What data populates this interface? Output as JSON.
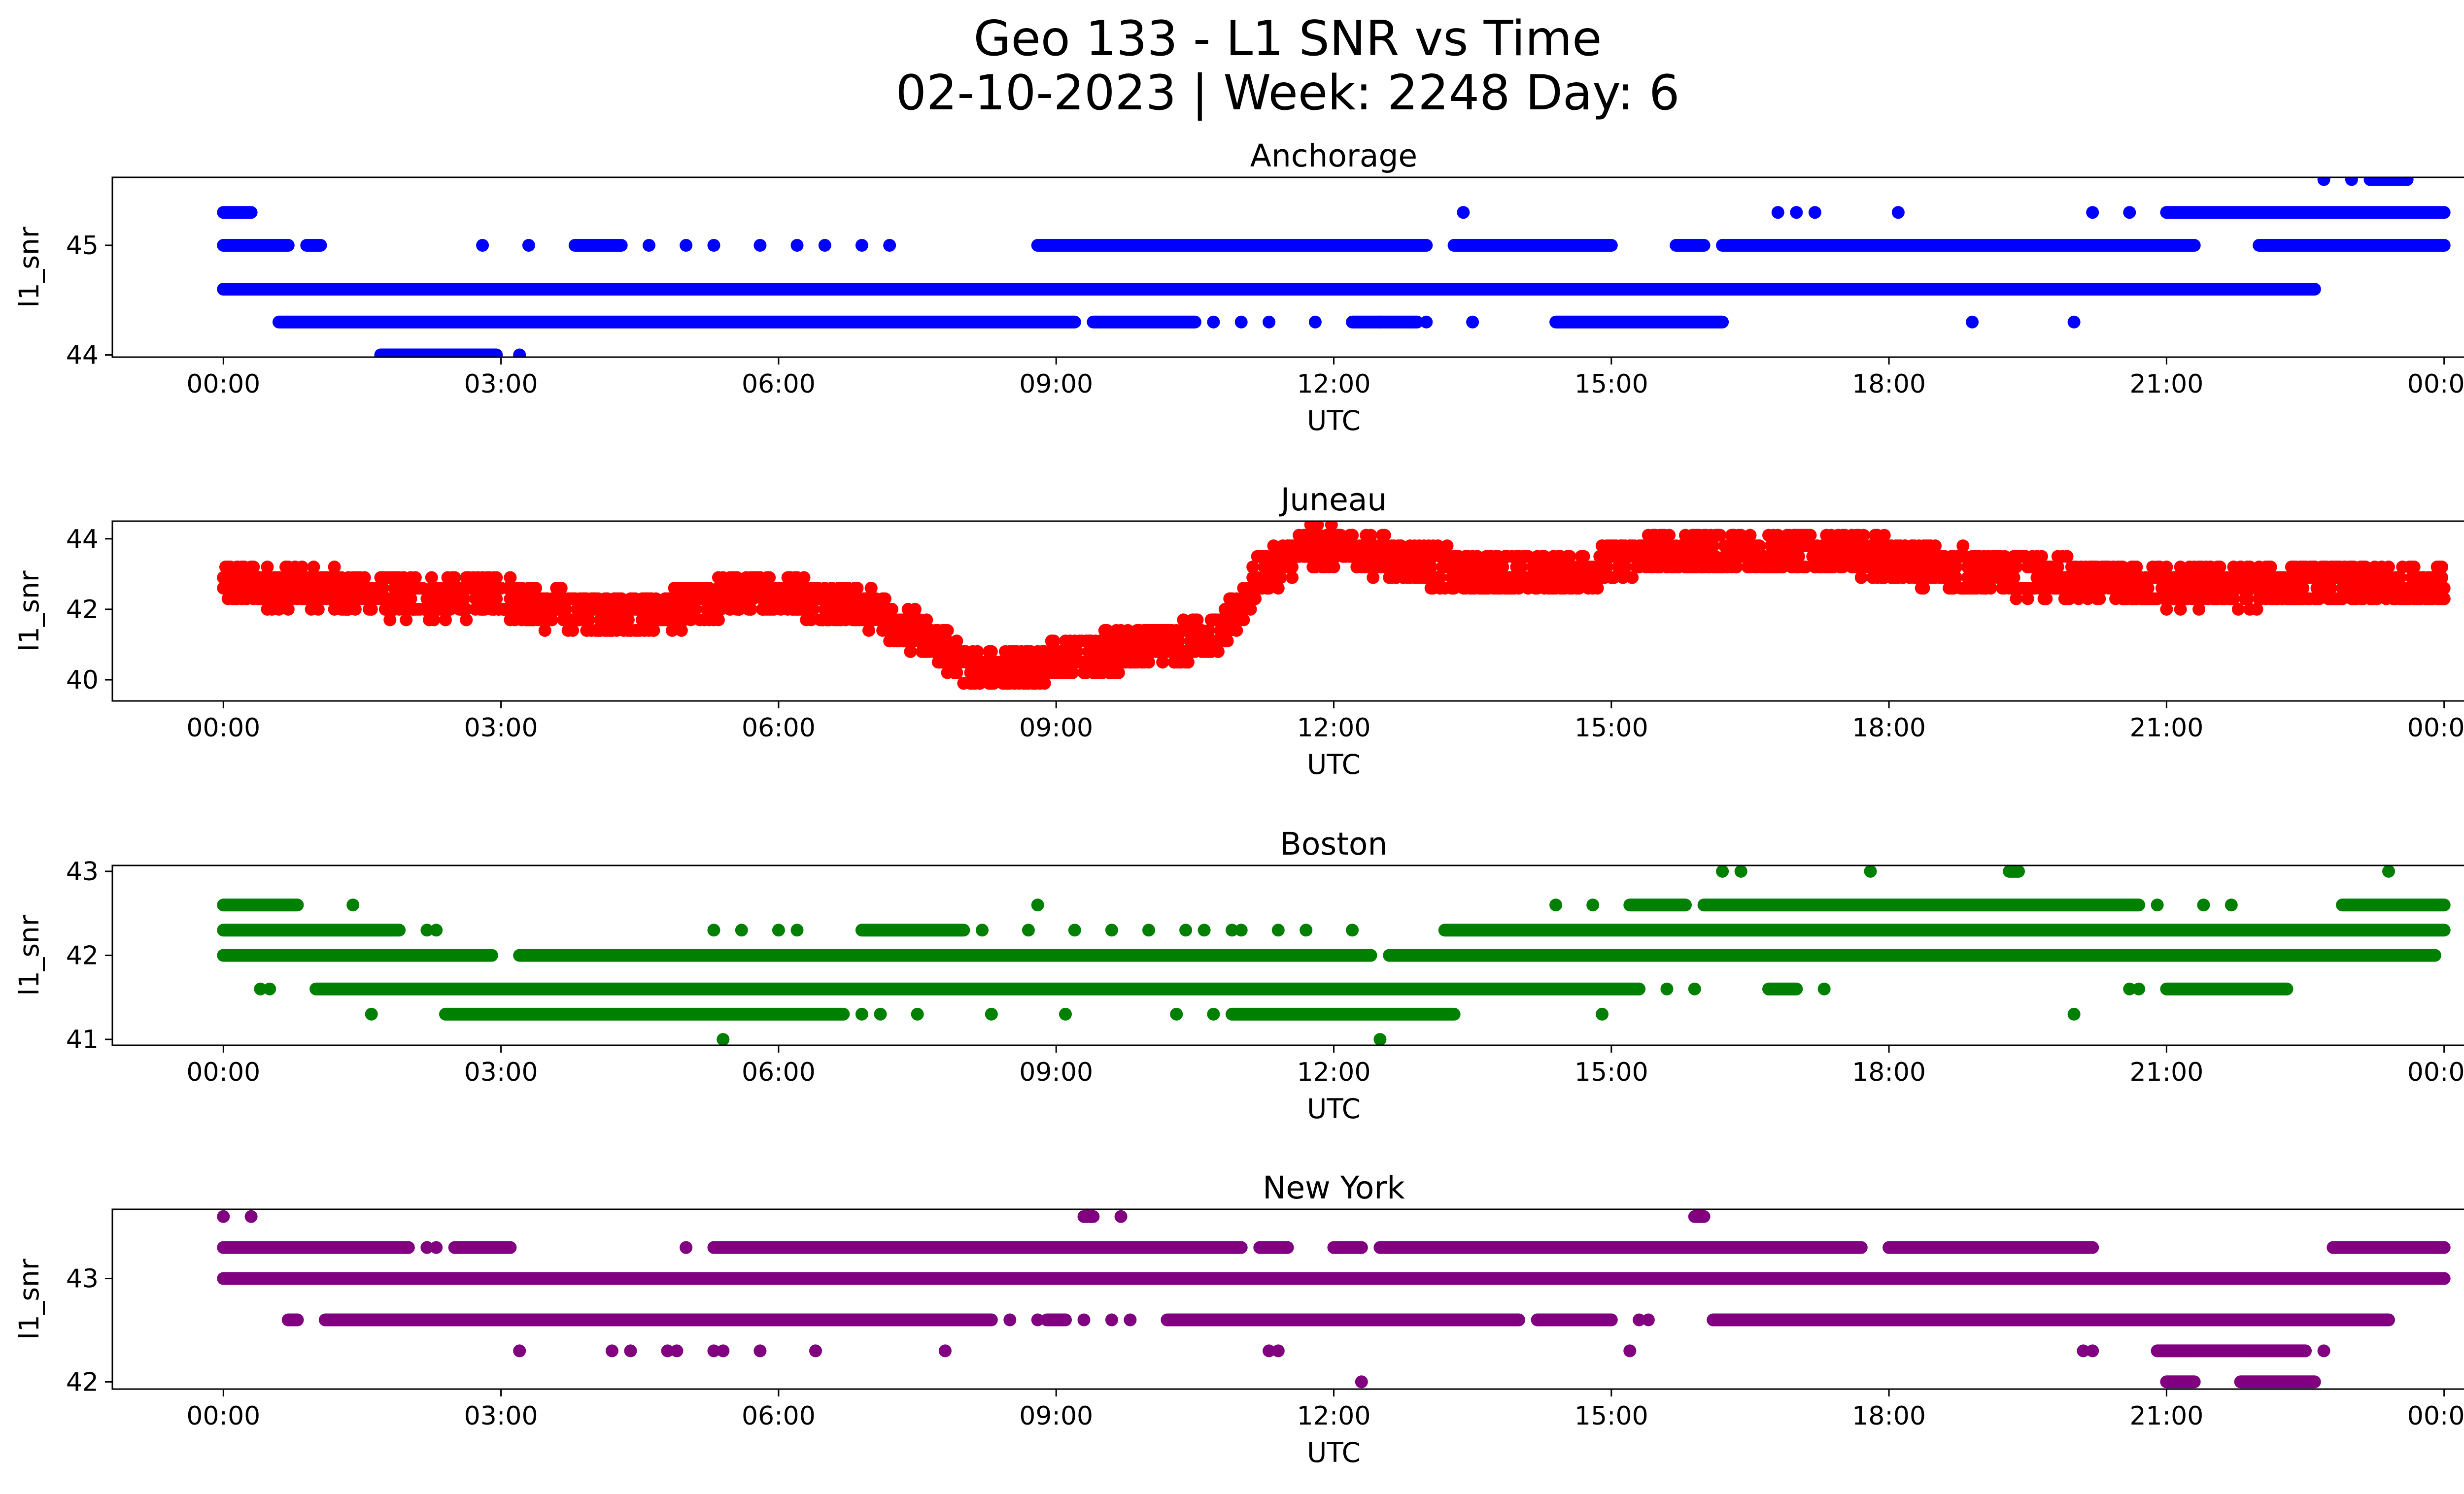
{
  "figure": {
    "title_line1": "Geo 133 - L1 SNR vs Time",
    "title_line2": "02-10-2023 | Week: 2248 Day: 6"
  },
  "chart_data": [
    {
      "type": "scatter",
      "title": "Anchorage",
      "xlabel": "UTC",
      "ylabel": "l1_snr",
      "color": "#0000ff",
      "x_ticks": [
        "00:00",
        "03:00",
        "06:00",
        "09:00",
        "12:00",
        "15:00",
        "18:00",
        "21:00",
        "00:00"
      ],
      "xlim_hours": [
        -1.2,
        25.2
      ],
      "ylim": [
        43.98,
        45.62
      ],
      "y_ticks": [
        44,
        45
      ],
      "levels": [
        {
          "y": 44.0,
          "segments": [
            [
              1.7,
              2.95
            ]
          ],
          "points": [
            3.2
          ]
        },
        {
          "y": 44.3,
          "segments": [
            [
              0.6,
              9.2
            ],
            [
              9.4,
              10.5
            ],
            [
              12.2,
              12.9
            ],
            [
              14.4,
              16.2
            ]
          ],
          "points": [
            10.7,
            11.0,
            11.3,
            11.8,
            12.5,
            13.0,
            13.5,
            18.9,
            20.0
          ]
        },
        {
          "y": 44.6,
          "segments": [
            [
              0.0,
              22.6
            ]
          ],
          "points": []
        },
        {
          "y": 45.0,
          "segments": [
            [
              0.0,
              0.7
            ],
            [
              0.9,
              1.05
            ],
            [
              3.8,
              4.3
            ],
            [
              8.8,
              13.0
            ],
            [
              13.3,
              15.0
            ],
            [
              15.7,
              16.0
            ],
            [
              16.2,
              21.3
            ],
            [
              22.0,
              24.0
            ]
          ],
          "points": [
            2.8,
            3.3,
            4.6,
            5.0,
            5.3,
            5.8,
            6.2,
            6.5,
            6.9,
            7.2
          ]
        },
        {
          "y": 45.3,
          "segments": [
            [
              0.0,
              0.3
            ],
            [
              21.0,
              24.0
            ]
          ],
          "points": [
            13.4,
            16.8,
            17.0,
            17.2,
            18.1,
            20.2,
            20.6
          ]
        },
        {
          "y": 45.6,
          "segments": [
            [
              23.2,
              23.6
            ]
          ],
          "points": [
            22.7,
            23.0
          ]
        }
      ]
    },
    {
      "type": "scatter",
      "title": "Juneau",
      "xlabel": "UTC",
      "ylabel": "l1_snr",
      "color": "#ff0000",
      "x_ticks": [
        "00:00",
        "03:00",
        "06:00",
        "09:00",
        "12:00",
        "15:00",
        "18:00",
        "21:00",
        "00:00"
      ],
      "xlim_hours": [
        -1.2,
        25.2
      ],
      "ylim": [
        39.4,
        44.5
      ],
      "y_ticks": [
        40,
        42,
        44
      ],
      "trend": [
        {
          "t": 0.0,
          "y": 42.7
        },
        {
          "t": 1.0,
          "y": 42.6
        },
        {
          "t": 2.0,
          "y": 42.3
        },
        {
          "t": 3.0,
          "y": 42.4
        },
        {
          "t": 3.5,
          "y": 42.0
        },
        {
          "t": 4.5,
          "y": 41.8
        },
        {
          "t": 5.5,
          "y": 42.4
        },
        {
          "t": 6.0,
          "y": 42.5
        },
        {
          "t": 7.0,
          "y": 42.0
        },
        {
          "t": 7.5,
          "y": 41.3
        },
        {
          "t": 8.2,
          "y": 40.2
        },
        {
          "t": 9.0,
          "y": 40.5
        },
        {
          "t": 10.0,
          "y": 41.0
        },
        {
          "t": 10.8,
          "y": 41.3
        },
        {
          "t": 11.2,
          "y": 43.0
        },
        {
          "t": 11.8,
          "y": 43.8
        },
        {
          "t": 12.5,
          "y": 43.5
        },
        {
          "t": 13.5,
          "y": 43.0
        },
        {
          "t": 14.5,
          "y": 43.0
        },
        {
          "t": 15.5,
          "y": 43.6
        },
        {
          "t": 17.5,
          "y": 43.6
        },
        {
          "t": 18.5,
          "y": 43.2
        },
        {
          "t": 20.0,
          "y": 42.8
        },
        {
          "t": 21.0,
          "y": 42.6
        },
        {
          "t": 22.5,
          "y": 42.7
        },
        {
          "t": 24.0,
          "y": 42.7
        }
      ],
      "spread": 0.55
    },
    {
      "type": "scatter",
      "title": "Boston",
      "xlabel": "UTC",
      "ylabel": "l1_snr",
      "color": "#008000",
      "x_ticks": [
        "00:00",
        "03:00",
        "06:00",
        "09:00",
        "12:00",
        "15:00",
        "18:00",
        "21:00",
        "00:00"
      ],
      "xlim_hours": [
        -1.2,
        25.2
      ],
      "ylim": [
        40.93,
        43.07
      ],
      "y_ticks": [
        41,
        42,
        43
      ],
      "levels": [
        {
          "y": 41.0,
          "segments": [],
          "points": [
            5.4,
            12.5
          ]
        },
        {
          "y": 41.3,
          "segments": [
            [
              2.4,
              6.7
            ],
            [
              10.9,
              13.3
            ]
          ],
          "points": [
            1.6,
            6.9,
            7.1,
            7.5,
            8.3,
            9.1,
            10.3,
            10.7,
            14.9,
            20.0
          ]
        },
        {
          "y": 41.6,
          "segments": [
            [
              1.0,
              15.3
            ],
            [
              16.7,
              17.0
            ],
            [
              21.0,
              22.3
            ]
          ],
          "points": [
            0.4,
            0.5,
            15.6,
            15.9,
            17.3,
            20.6,
            20.7
          ]
        },
        {
          "y": 42.0,
          "segments": [
            [
              0.0,
              2.9
            ],
            [
              3.2,
              12.4
            ],
            [
              12.6,
              23.9
            ]
          ],
          "points": []
        },
        {
          "y": 42.3,
          "segments": [
            [
              0.0,
              1.9
            ],
            [
              6.9,
              8.0
            ],
            [
              13.2,
              24.0
            ]
          ],
          "points": [
            2.2,
            2.3,
            5.3,
            5.6,
            6.0,
            6.2,
            8.2,
            8.7,
            9.2,
            9.6,
            10.0,
            10.4,
            10.6,
            10.9,
            11.0,
            11.4,
            11.7,
            12.2
          ]
        },
        {
          "y": 42.6,
          "segments": [
            [
              0.0,
              0.8
            ],
            [
              15.2,
              15.8
            ],
            [
              16.0,
              20.7
            ],
            [
              22.9,
              24.0
            ]
          ],
          "points": [
            1.4,
            8.8,
            14.4,
            14.8,
            20.9,
            21.4,
            21.7
          ]
        },
        {
          "y": 43.0,
          "segments": [
            [
              19.3,
              19.4
            ]
          ],
          "points": [
            16.2,
            16.4,
            17.8,
            23.4
          ]
        }
      ]
    },
    {
      "type": "scatter",
      "title": "New York",
      "xlabel": "UTC",
      "ylabel": "l1_snr",
      "color": "#800080",
      "x_ticks": [
        "00:00",
        "03:00",
        "06:00",
        "09:00",
        "12:00",
        "15:00",
        "18:00",
        "21:00",
        "00:00"
      ],
      "xlim_hours": [
        -1.2,
        25.2
      ],
      "ylim": [
        41.93,
        43.67
      ],
      "y_ticks": [
        42,
        43
      ],
      "levels": [
        {
          "y": 42.0,
          "segments": [
            [
              21.0,
              21.3
            ],
            [
              21.8,
              22.6
            ]
          ],
          "points": [
            12.3
          ]
        },
        {
          "y": 42.3,
          "segments": [
            [
              20.9,
              22.5
            ]
          ],
          "points": [
            3.2,
            4.2,
            4.4,
            4.8,
            4.9,
            5.3,
            5.4,
            5.8,
            6.4,
            7.8,
            11.3,
            11.4,
            15.2,
            20.1,
            20.2,
            22.7
          ]
        },
        {
          "y": 42.6,
          "segments": [
            [
              0.7,
              0.8
            ],
            [
              1.1,
              8.3
            ],
            [
              8.9,
              9.1
            ],
            [
              10.2,
              14.0
            ],
            [
              14.2,
              15.0
            ],
            [
              16.1,
              23.4
            ]
          ],
          "points": [
            8.5,
            8.8,
            9.3,
            9.6,
            9.8,
            14.4,
            14.5,
            14.9,
            15.3,
            15.4
          ]
        },
        {
          "y": 43.0,
          "segments": [
            [
              0.0,
              24.0
            ]
          ],
          "points": []
        },
        {
          "y": 43.3,
          "segments": [
            [
              0.0,
              2.0
            ],
            [
              2.5,
              3.1
            ],
            [
              5.3,
              11.0
            ],
            [
              11.2,
              11.5
            ],
            [
              12.0,
              12.3
            ],
            [
              12.5,
              17.7
            ],
            [
              18.0,
              20.2
            ],
            [
              22.8,
              24.0
            ]
          ],
          "points": [
            2.2,
            2.3,
            5.0
          ]
        },
        {
          "y": 43.6,
          "segments": [
            [
              9.3,
              9.4
            ],
            [
              15.9,
              16.0
            ]
          ],
          "points": [
            0.0,
            0.3,
            9.7
          ]
        }
      ]
    }
  ]
}
